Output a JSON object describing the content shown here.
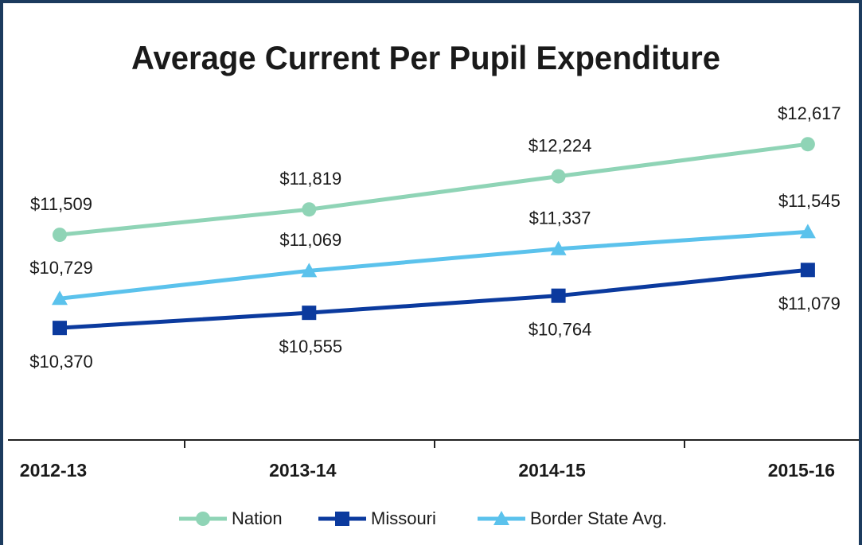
{
  "chart_data": {
    "type": "line",
    "title": "Average Current Per Pupil Expenditure",
    "categories": [
      "2012-13",
      "2013-14",
      "2014-15",
      "2015-16"
    ],
    "ylim": [
      9000,
      13300
    ],
    "series": [
      {
        "name": "Nation",
        "color": "#8fd4b6",
        "marker": "circle",
        "label_position": "above",
        "values": [
          11509,
          11819,
          12224,
          12617
        ],
        "value_labels": [
          "$11,509",
          "$11,819",
          "$12,224",
          "$12,617"
        ]
      },
      {
        "name": "Missouri",
        "color": "#0b3a9e",
        "marker": "square",
        "label_position": "below",
        "values": [
          10370,
          10555,
          10764,
          11079
        ],
        "value_labels": [
          "$10,370",
          "$10,555",
          "$10,764",
          "$11,079"
        ]
      },
      {
        "name": "Border State Avg.",
        "color": "#5bc2ec",
        "marker": "triangle",
        "label_position": "above",
        "values": [
          10729,
          11069,
          11337,
          11545
        ],
        "value_labels": [
          "$10,729",
          "$11,069",
          "$11,337",
          "$11,545"
        ]
      }
    ],
    "legend": "bottom"
  }
}
